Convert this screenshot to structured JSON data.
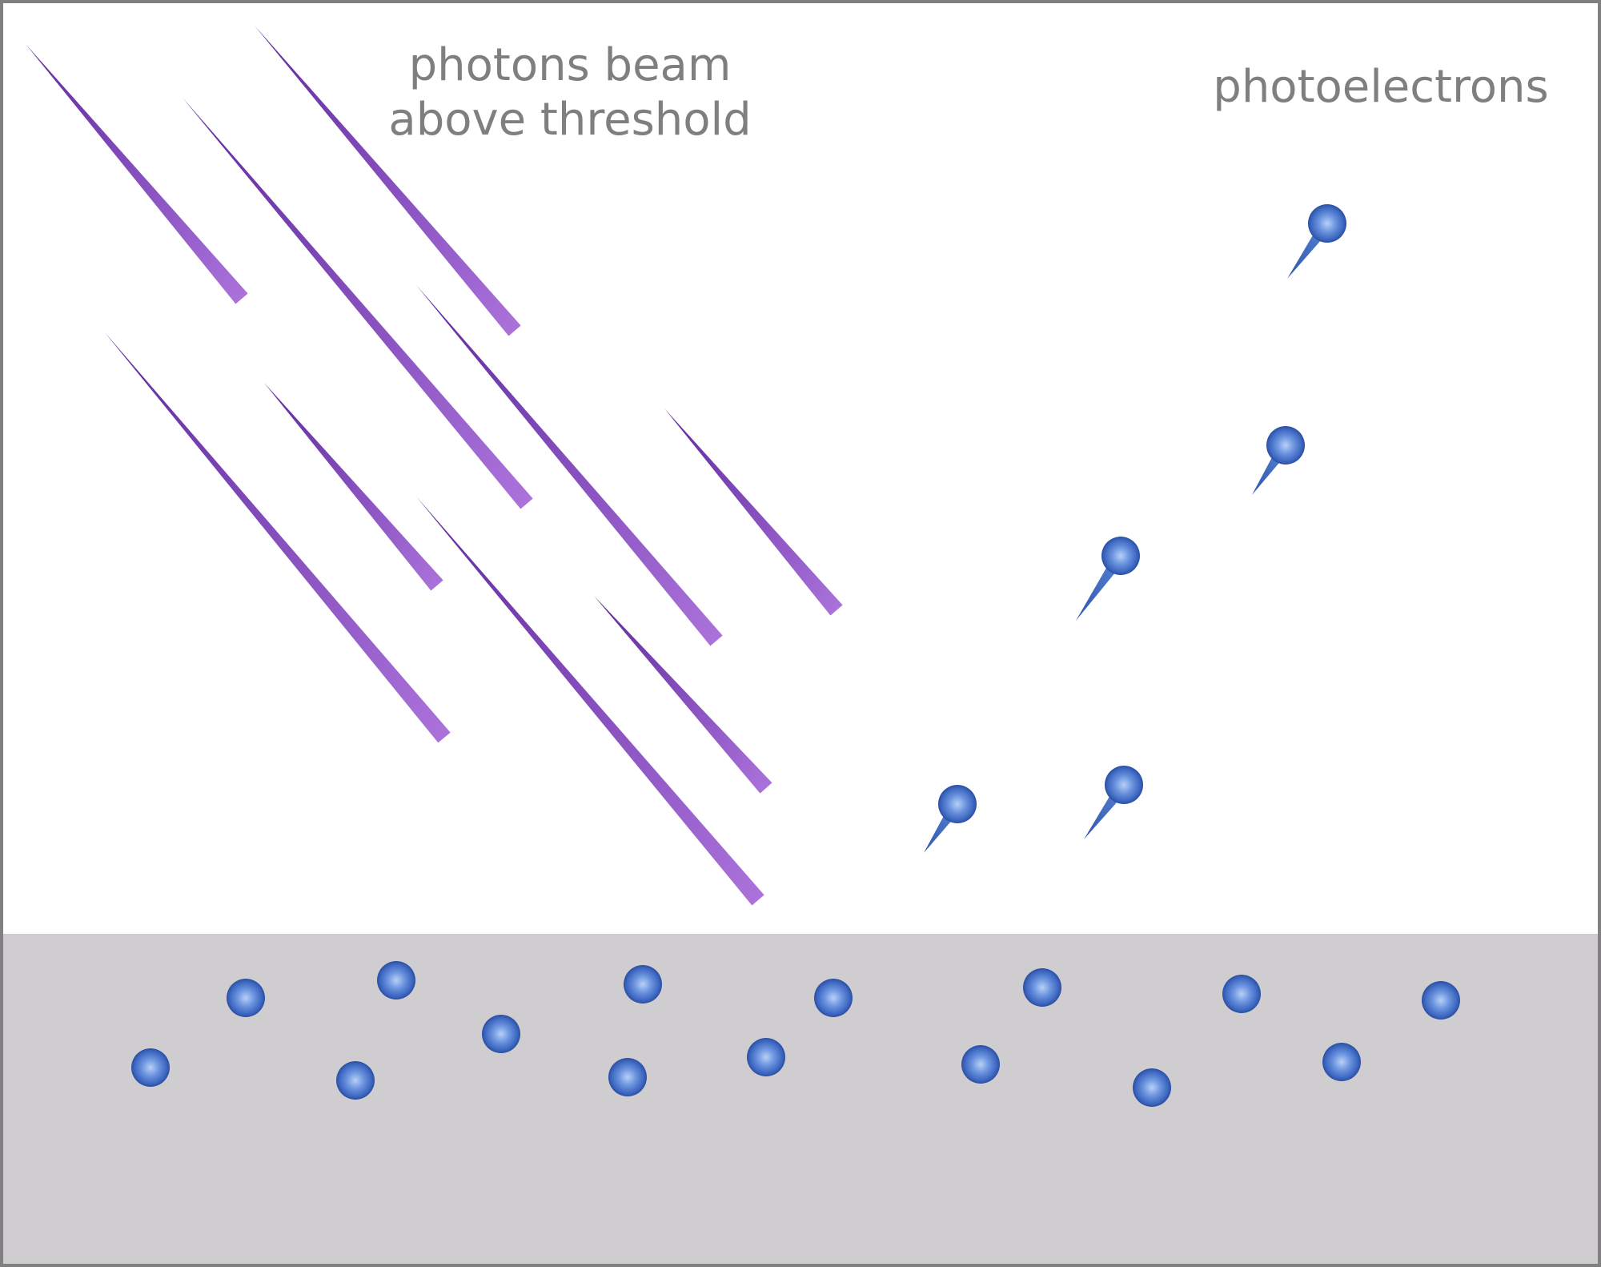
{
  "labels": {
    "photons_line1": "photons beam",
    "photons_line2": "above threshold",
    "photoelectrons": "photoelectrons"
  },
  "colors": {
    "border": "#808080",
    "background": "#ffffff",
    "metal": "#cfcdcf",
    "photon_dark": "#5e2a9e",
    "photon_light": "#a96ed6",
    "electron_center": "#a9c6f1",
    "electron_mid": "#4f7cd1",
    "electron_edge": "#2a4fa0",
    "electron_tail": "#4070c8",
    "label_text": "#7f7f7f"
  },
  "icons": {
    "photon": "photon-ray-icon",
    "bound_electron": "electron-icon",
    "emitted_electron": "photoelectron-icon"
  }
}
